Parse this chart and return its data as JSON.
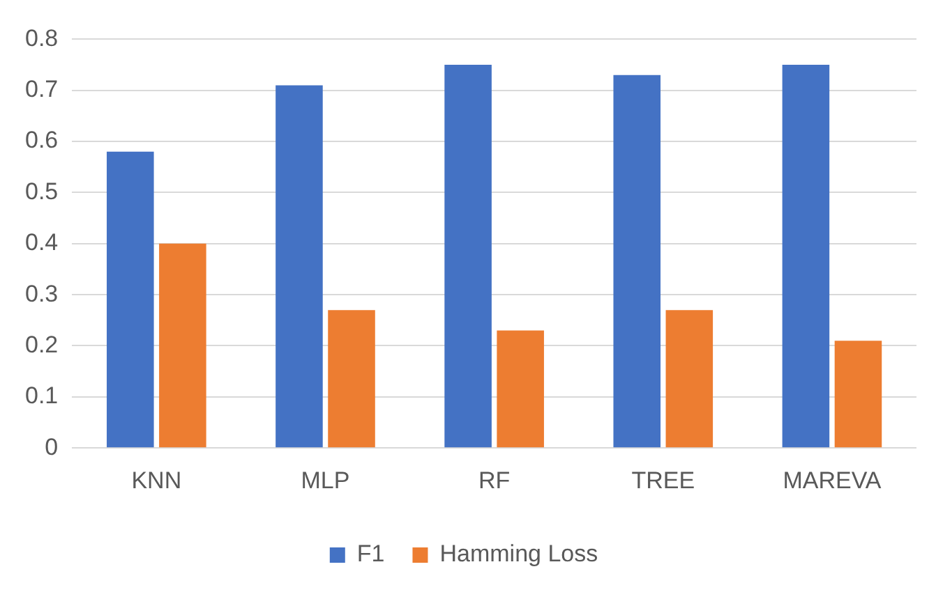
{
  "chart_data": {
    "type": "bar",
    "categories": [
      "KNN",
      "MLP",
      "RF",
      "TREE",
      "MAREVA"
    ],
    "series": [
      {
        "name": "F1",
        "color": "#4472c4",
        "values": [
          0.58,
          0.71,
          0.75,
          0.73,
          0.75
        ]
      },
      {
        "name": "Hamming Loss",
        "color": "#ed7d31",
        "values": [
          0.4,
          0.27,
          0.23,
          0.27,
          0.21
        ]
      }
    ],
    "ylim": [
      0,
      0.8
    ],
    "yticks": [
      0,
      0.1,
      0.2,
      0.3,
      0.4,
      0.5,
      0.6,
      0.7,
      0.8
    ],
    "grid": "y",
    "legend": "bottom"
  }
}
